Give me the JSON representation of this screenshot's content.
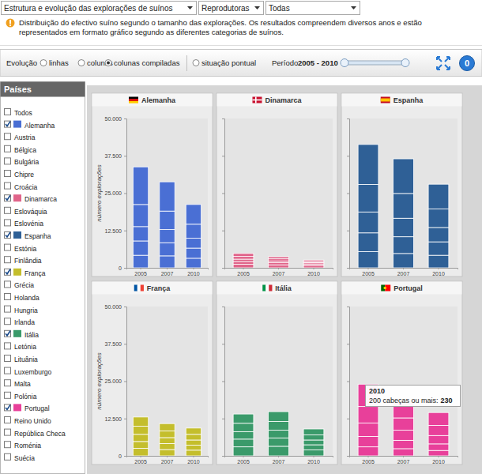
{
  "header": {
    "menus": [
      "Estrutura e evolução das explorações de suínos",
      "Reprodutoras",
      "Todas"
    ],
    "info": [
      "Distribuição do efectivo suíno segundo o tamanho das explorações. Os resultados compreendem diversos anos e estão",
      "representados em formato gráfico segundo as diferentes categorias de suínos."
    ]
  },
  "toolbar": {
    "label": "Evolução",
    "options": [
      {
        "text": "linhas",
        "selected": false
      },
      {
        "text": "colunas",
        "selected": false
      },
      {
        "text": "colunas compiladas",
        "selected": true
      },
      {
        "text": "situação pontual",
        "selected": false
      }
    ],
    "period_label": "Período",
    "period": "2005 - 2010",
    "badge": 0
  },
  "countries": {
    "title": "Países",
    "items": [
      {
        "name": "Todos",
        "checked": false
      },
      {
        "name": "Alemanha",
        "checked": true,
        "color": "#4a6fd4"
      },
      {
        "name": "Austria",
        "checked": false
      },
      {
        "name": "Bélgica",
        "checked": false
      },
      {
        "name": "Bulgária",
        "checked": false
      },
      {
        "name": "Chipre",
        "checked": false
      },
      {
        "name": "Croácia",
        "checked": false
      },
      {
        "name": "Dinamarca",
        "checked": true,
        "color": "#e0648a"
      },
      {
        "name": "Eslováquia",
        "checked": false
      },
      {
        "name": "Eslovénia",
        "checked": false
      },
      {
        "name": "Espanha",
        "checked": true,
        "color": "#2f6096"
      },
      {
        "name": "Estónia",
        "checked": false
      },
      {
        "name": "Finlândia",
        "checked": false
      },
      {
        "name": "França",
        "checked": true,
        "color": "#c4be2c"
      },
      {
        "name": "Grécia",
        "checked": false
      },
      {
        "name": "Holanda",
        "checked": false
      },
      {
        "name": "Hungria",
        "checked": false
      },
      {
        "name": "Irlanda",
        "checked": false
      },
      {
        "name": "Itália",
        "checked": true,
        "color": "#3a9a6a"
      },
      {
        "name": "Letónia",
        "checked": false
      },
      {
        "name": "Lituânia",
        "checked": false
      },
      {
        "name": "Luxemburgo",
        "checked": false
      },
      {
        "name": "Malta",
        "checked": false
      },
      {
        "name": "Polónia",
        "checked": false
      },
      {
        "name": "Portugal",
        "checked": true,
        "color": "#e8409a"
      },
      {
        "name": "Reino Unido",
        "checked": false
      },
      {
        "name": "República Checa",
        "checked": false
      },
      {
        "name": "Roménia",
        "checked": false
      },
      {
        "name": "Suécia",
        "checked": false
      }
    ]
  },
  "chart_data": [
    {
      "type": "bar",
      "stacked": true,
      "title": "Alemanha",
      "color": "#4a6fd4",
      "y_label": "número explorações",
      "categories": [
        "2005",
        "2007",
        "2010"
      ],
      "series": [
        {
          "values": [
            4200,
            4000,
            3200
          ]
        },
        {
          "values": [
            4800,
            4400,
            3400
          ]
        },
        {
          "values": [
            4800,
            4400,
            3300
          ]
        },
        {
          "values": [
            7400,
            6200,
            4700
          ]
        },
        {
          "values": [
            12600,
            9800,
            6600
          ]
        }
      ],
      "ylim": [
        0,
        50000
      ],
      "yticks": [
        0,
        {
          "value": 12500,
          "label": "12.500"
        },
        {
          "value": 25000,
          "label": "25.000"
        },
        {
          "value": 37500,
          "label": "37.500"
        },
        {
          "value": 50000,
          "label": "50.000"
        }
      ]
    },
    {
      "type": "bar",
      "stacked": true,
      "title": "Dinamarca",
      "color": "#e0648a",
      "tick_labels": "x",
      "categories": [
        "2005",
        "2007",
        "2010"
      ],
      "series": [
        {
          "values": [
            1200,
            1000,
            800
          ]
        },
        {
          "values": [
            900,
            700,
            500
          ]
        },
        {
          "values": [
            800,
            600,
            400
          ]
        },
        {
          "values": [
            900,
            700,
            400
          ]
        },
        {
          "values": [
            1000,
            700,
            500
          ]
        }
      ],
      "ylim": [
        0,
        50000
      ],
      "yticks": [
        0,
        12500,
        25000,
        37500,
        50000
      ]
    },
    {
      "type": "bar",
      "stacked": true,
      "title": "Espanha",
      "color": "#2f6096",
      "tick_labels": "x",
      "categories": [
        "2005",
        "2007",
        "2010"
      ],
      "series": [
        {
          "values": [
            5400,
            4800,
            4200
          ]
        },
        {
          "values": [
            6300,
            5600,
            4500
          ]
        },
        {
          "values": [
            7000,
            6200,
            4800
          ]
        },
        {
          "values": [
            9200,
            8300,
            6200
          ]
        },
        {
          "values": [
            13400,
            11600,
            8300
          ]
        }
      ],
      "ylim": [
        0,
        50000
      ],
      "yticks": [
        0,
        12500,
        25000,
        37500,
        50000
      ]
    },
    {
      "type": "bar",
      "stacked": true,
      "title": "França",
      "color": "#c4be2c",
      "y_label": "número explorações",
      "categories": [
        "2005",
        "2007",
        "2010"
      ],
      "series": [
        {
          "values": [
            2500,
            2100,
            1900
          ]
        },
        {
          "values": [
            2300,
            2000,
            1700
          ]
        },
        {
          "values": [
            2400,
            2000,
            1700
          ]
        },
        {
          "values": [
            2700,
            2200,
            1900
          ]
        },
        {
          "values": [
            3100,
            2500,
            2100
          ]
        }
      ],
      "ylim": [
        0,
        50000
      ],
      "yticks": [
        0,
        {
          "value": 12500,
          "label": "12.500"
        },
        {
          "value": 25000,
          "label": "25.000"
        },
        {
          "value": 37500,
          "label": "37.500"
        },
        {
          "value": 50000,
          "label": "50.000"
        }
      ]
    },
    {
      "type": "bar",
      "stacked": true,
      "title": "Itália",
      "color": "#3a9a6a",
      "tick_labels": "x",
      "categories": [
        "2005",
        "2007",
        "2010"
      ],
      "series": [
        {
          "values": [
            3000,
            3200,
            2000
          ]
        },
        {
          "values": [
            2600,
            2800,
            1700
          ]
        },
        {
          "values": [
            2500,
            2600,
            1600
          ]
        },
        {
          "values": [
            2800,
            2900,
            1700
          ]
        },
        {
          "values": [
            3100,
            3300,
            2000
          ]
        }
      ],
      "ylim": [
        0,
        50000
      ],
      "yticks": [
        0,
        12500,
        25000,
        37500,
        50000
      ]
    },
    {
      "type": "bar",
      "stacked": true,
      "title": "Portugal",
      "color": "#e8409a",
      "tick_labels": "x",
      "categories": [
        "2005",
        "2007",
        "2010"
      ],
      "series": [
        {
          "values": [
            3000,
            2400,
            1800
          ]
        },
        {
          "values": [
            3500,
            2800,
            2200
          ]
        },
        {
          "values": [
            4500,
            3400,
            2800
          ]
        },
        {
          "values": [
            5500,
            4100,
            3400
          ]
        },
        {
          "values": [
            7500,
            5300,
            4300
          ]
        }
      ],
      "ylim": [
        0,
        50000
      ],
      "yticks": [
        0,
        12500,
        25000,
        37500,
        50000
      ],
      "annotations": [
        {
          "x": "2010",
          "text": "200 cabeças ou mais:",
          "value": 230
        }
      ]
    }
  ]
}
